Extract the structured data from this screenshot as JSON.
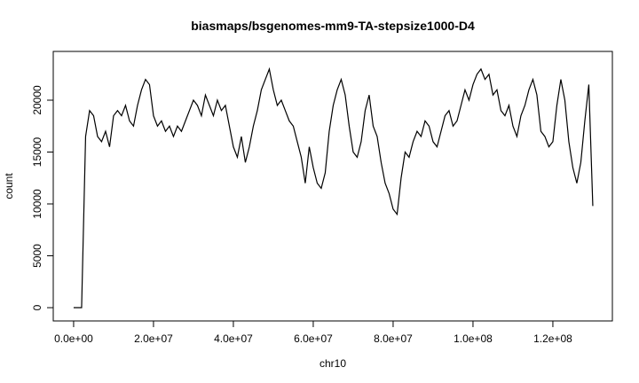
{
  "chart_data": {
    "type": "line",
    "title": "biasmaps/bsgenomes-mm9-TA-stepsize1000-D4",
    "x_label": "chr10",
    "y_label": "count",
    "color": "#000000",
    "x": [
      0,
      1000000,
      2000000,
      3000000,
      4000000,
      5000000,
      6000000,
      7000000,
      8000000,
      9000000,
      10000000,
      11000000,
      12000000,
      13000000,
      14000000,
      15000000,
      16000000,
      17000000,
      18000000,
      19000000,
      20000000,
      21000000,
      22000000,
      23000000,
      24000000,
      25000000,
      26000000,
      27000000,
      28000000,
      29000000,
      30000000,
      31000000,
      32000000,
      33000000,
      34000000,
      35000000,
      36000000,
      37000000,
      38000000,
      39000000,
      40000000,
      41000000,
      42000000,
      43000000,
      44000000,
      45000000,
      46000000,
      47000000,
      48000000,
      49000000,
      50000000,
      51000000,
      52000000,
      53000000,
      54000000,
      55000000,
      56000000,
      57000000,
      58000000,
      59000000,
      60000000,
      61000000,
      62000000,
      63000000,
      64000000,
      65000000,
      66000000,
      67000000,
      68000000,
      69000000,
      70000000,
      71000000,
      72000000,
      73000000,
      74000000,
      75000000,
      76000000,
      77000000,
      78000000,
      79000000,
      80000000,
      81000000,
      82000000,
      83000000,
      84000000,
      85000000,
      86000000,
      87000000,
      88000000,
      89000000,
      90000000,
      91000000,
      92000000,
      93000000,
      94000000,
      95000000,
      96000000,
      97000000,
      98000000,
      99000000,
      100000000,
      101000000,
      102000000,
      103000000,
      104000000,
      105000000,
      106000000,
      107000000,
      108000000,
      109000000,
      110000000,
      111000000,
      112000000,
      113000000,
      114000000,
      115000000,
      116000000,
      117000000,
      118000000,
      119000000,
      120000000,
      121000000,
      122000000,
      123000000,
      124000000,
      125000000,
      126000000,
      127000000,
      128000000,
      129000000,
      130000000
    ],
    "values": [
      0,
      0,
      0,
      16500,
      19000,
      18500,
      16500,
      16000,
      17000,
      15500,
      18500,
      19000,
      18500,
      19500,
      18000,
      17500,
      19500,
      21000,
      22000,
      21500,
      18500,
      17500,
      18000,
      17000,
      17500,
      16500,
      17500,
      17000,
      18000,
      19000,
      20000,
      19500,
      18500,
      20500,
      19500,
      18500,
      20000,
      19000,
      19500,
      17500,
      15500,
      14500,
      16500,
      14000,
      15500,
      17500,
      19000,
      21000,
      22000,
      23000,
      21000,
      19500,
      20000,
      19000,
      18000,
      17500,
      16000,
      14500,
      12000,
      15500,
      13500,
      12000,
      11500,
      13000,
      17000,
      19500,
      21000,
      22000,
      20500,
      17500,
      15000,
      14500,
      16000,
      19000,
      20500,
      17500,
      16500,
      14000,
      12000,
      11000,
      9500,
      9000,
      12500,
      15000,
      14500,
      16000,
      17000,
      16500,
      18000,
      17500,
      16000,
      15500,
      17000,
      18500,
      19000,
      17500,
      18000,
      19500,
      21000,
      20000,
      21500,
      22500,
      23000,
      22000,
      22500,
      20500,
      21000,
      19000,
      18500,
      19500,
      17500,
      16500,
      18500,
      19500,
      21000,
      22000,
      20500,
      17000,
      16500,
      15500,
      16000,
      19500,
      22000,
      20000,
      16000,
      13500,
      12000,
      14000,
      18000,
      21500,
      9800
    ],
    "xlim": [
      -5100000,
      134900000
    ],
    "xticks": [
      {
        "value": 0,
        "label": "0.0e+00"
      },
      {
        "value": 20000000,
        "label": "2.0e+07"
      },
      {
        "value": 40000000,
        "label": "4.0e+07"
      },
      {
        "value": 60000000,
        "label": "6.0e+07"
      },
      {
        "value": 80000000,
        "label": "8.0e+07"
      },
      {
        "value": 100000000,
        "label": "1.0e+08"
      },
      {
        "value": 120000000,
        "label": "1.2e+08"
      }
    ],
    "ylim": [
      -1280,
      24700
    ],
    "yticks": [
      0,
      5000,
      10000,
      15000,
      20000
    ]
  }
}
